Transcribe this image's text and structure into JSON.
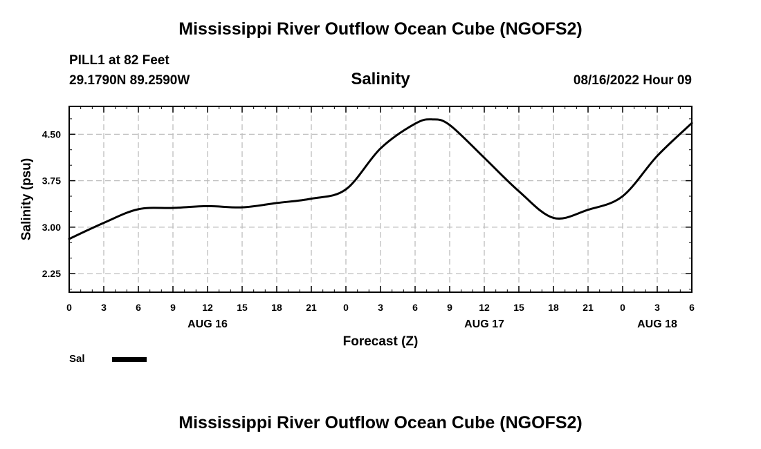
{
  "header": {
    "title": "Mississippi River Outflow Ocean Cube (NGOFS2)",
    "station": "PILL1 at 82 Feet",
    "coords": "29.1790N  89.2590W",
    "variable": "Salinity",
    "datetime": "08/16/2022 Hour 09"
  },
  "footer": {
    "title": "Mississippi River Outflow Ocean Cube (NGOFS2)"
  },
  "legend": {
    "label": "Sal",
    "color": "#000000"
  },
  "chart_data": {
    "type": "line",
    "title": "Salinity",
    "xlabel": "Forecast (Z)",
    "ylabel": "Salinity (psu)",
    "xlim": [
      0,
      54
    ],
    "ylim": [
      1.95,
      4.95
    ],
    "grid": true,
    "x_ticks": [
      0,
      3,
      6,
      9,
      12,
      15,
      18,
      21,
      24,
      27,
      30,
      33,
      36,
      39,
      42,
      45,
      48,
      51,
      54
    ],
    "x_tick_labels": [
      "0",
      "3",
      "6",
      "9",
      "12",
      "15",
      "18",
      "21",
      "0",
      "3",
      "6",
      "9",
      "12",
      "15",
      "18",
      "21",
      "0",
      "3",
      "6"
    ],
    "y_ticks": [
      2.25,
      3.0,
      3.75,
      4.5
    ],
    "y_tick_labels": [
      "2.25",
      "3.00",
      "3.75",
      "4.50"
    ],
    "date_labels": [
      {
        "x": 12,
        "label": "AUG 16"
      },
      {
        "x": 36,
        "label": "AUG 17"
      },
      {
        "x": 51,
        "label": "AUG 18"
      }
    ],
    "series": [
      {
        "name": "Sal",
        "color": "#000000",
        "x": [
          0,
          3,
          6,
          9,
          12,
          15,
          18,
          21,
          24,
          27,
          30,
          31.5,
          33,
          36,
          39,
          42,
          45,
          48,
          51,
          54
        ],
        "values": [
          2.81,
          3.07,
          3.29,
          3.31,
          3.34,
          3.32,
          3.39,
          3.46,
          3.61,
          4.27,
          4.67,
          4.74,
          4.65,
          4.12,
          3.58,
          3.15,
          3.28,
          3.5,
          4.15,
          4.68
        ]
      }
    ]
  }
}
